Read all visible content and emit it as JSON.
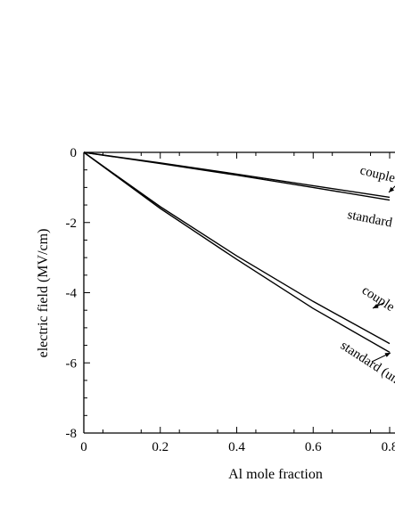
{
  "chart_data": {
    "type": "line",
    "xlabel": "Al mole fraction",
    "ylabel": "electric field (MV/cm)",
    "xlim": [
      0,
      0.8
    ],
    "ylim": [
      -8,
      0
    ],
    "x_ticks": [
      0,
      0.2,
      0.4,
      0.6,
      0.8
    ],
    "x_tick_labels": [
      "0",
      "0.2",
      "0.4",
      "0.6",
      "0.8"
    ],
    "y_ticks": [
      0,
      -2,
      -4,
      -6,
      -8
    ],
    "y_tick_labels": [
      "0",
      "-2",
      "-4",
      "-6",
      "-8"
    ],
    "grid": false,
    "legend": "none",
    "series": [
      {
        "x": [
          0,
          0.2,
          0.4,
          0.6,
          0.8
        ],
        "values": [
          0,
          -0.3,
          -0.62,
          -0.95,
          -1.28
        ]
      },
      {
        "x": [
          0,
          0.2,
          0.4,
          0.6,
          0.8
        ],
        "values": [
          0,
          -0.32,
          -0.65,
          -1.0,
          -1.36
        ]
      },
      {
        "x": [
          0,
          0.2,
          0.4,
          0.6,
          0.8
        ],
        "values": [
          0,
          -1.55,
          -2.95,
          -4.25,
          -5.45
        ]
      },
      {
        "x": [
          0,
          0.2,
          0.4,
          0.6,
          0.8
        ],
        "values": [
          0,
          -1.6,
          -3.05,
          -4.45,
          -5.7
        ]
      }
    ],
    "annotations": [
      "couple",
      "standard",
      "couple",
      "standard (un"
    ]
  }
}
